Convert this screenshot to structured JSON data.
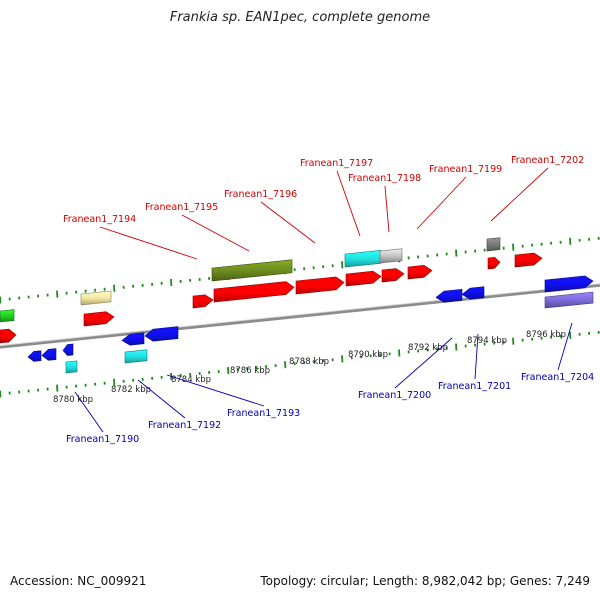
{
  "title": "Frankia sp. EAN1pec, complete genome",
  "footer": {
    "accession": "Accession: NC_009921",
    "summary": "Topology: circular; Length: 8,982,042 bp; Genes: 7,249"
  },
  "colors": {
    "backbone": "#8c8c8c",
    "tick": "#1f8a1f",
    "forward_label": "#cc0000",
    "reverse_label": "#0000aa",
    "red": "#ff0000",
    "blue": "#1010ee",
    "cyan": "#22dddd",
    "olive": "#6b8a1e",
    "yellow": "#f0e6a0",
    "green": "#22cc22",
    "gray": "#777777",
    "lightgray": "#c0c0c0",
    "purple": "#7a6ad6"
  },
  "scale_labels": [
    "8780 kbp",
    "8782 kbp",
    "8784 kbp",
    "8786 kbp",
    "8788 kbp",
    "8790 kbp",
    "8792 kbp",
    "8794 kbp",
    "8796 kbp"
  ],
  "forward_gene_labels": [
    "Franean1_7194",
    "Franean1_7195",
    "Franean1_7196",
    "Franean1_7197",
    "Franean1_7198",
    "Franean1_7199",
    "Franean1_7202"
  ],
  "reverse_gene_labels": [
    "Franean1_7190",
    "Franean1_7192",
    "Franean1_7193",
    "Franean1_7200",
    "Franean1_7201",
    "Franean1_7204"
  ]
}
